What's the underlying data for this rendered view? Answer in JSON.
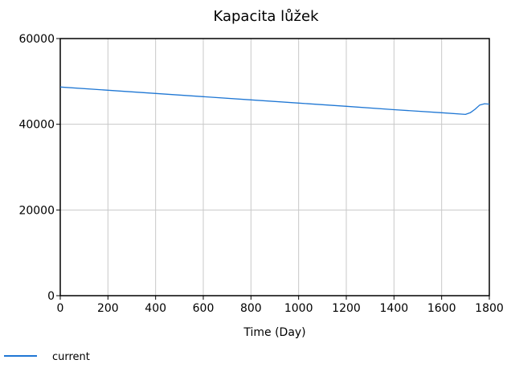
{
  "chart_data": {
    "type": "line",
    "title": "Kapacita lůžek",
    "xlabel": "Time (Day)",
    "ylabel": "",
    "xlim": [
      0,
      1800
    ],
    "ylim": [
      0,
      60000
    ],
    "x_ticks": [
      0,
      200,
      400,
      600,
      800,
      1000,
      1200,
      1400,
      1600,
      1800
    ],
    "y_ticks": [
      0,
      20000,
      40000,
      60000
    ],
    "grid": true,
    "legend_position": "bottom-left",
    "series": [
      {
        "name": "current",
        "color": "#1f77d4",
        "x": [
          0,
          200,
          400,
          600,
          800,
          1000,
          1200,
          1400,
          1600,
          1700,
          1720,
          1740,
          1760,
          1780,
          1800
        ],
        "y": [
          48700,
          47950,
          47200,
          46450,
          45700,
          44950,
          44200,
          43400,
          42700,
          42300,
          42700,
          43500,
          44500,
          44800,
          44700
        ]
      }
    ]
  }
}
